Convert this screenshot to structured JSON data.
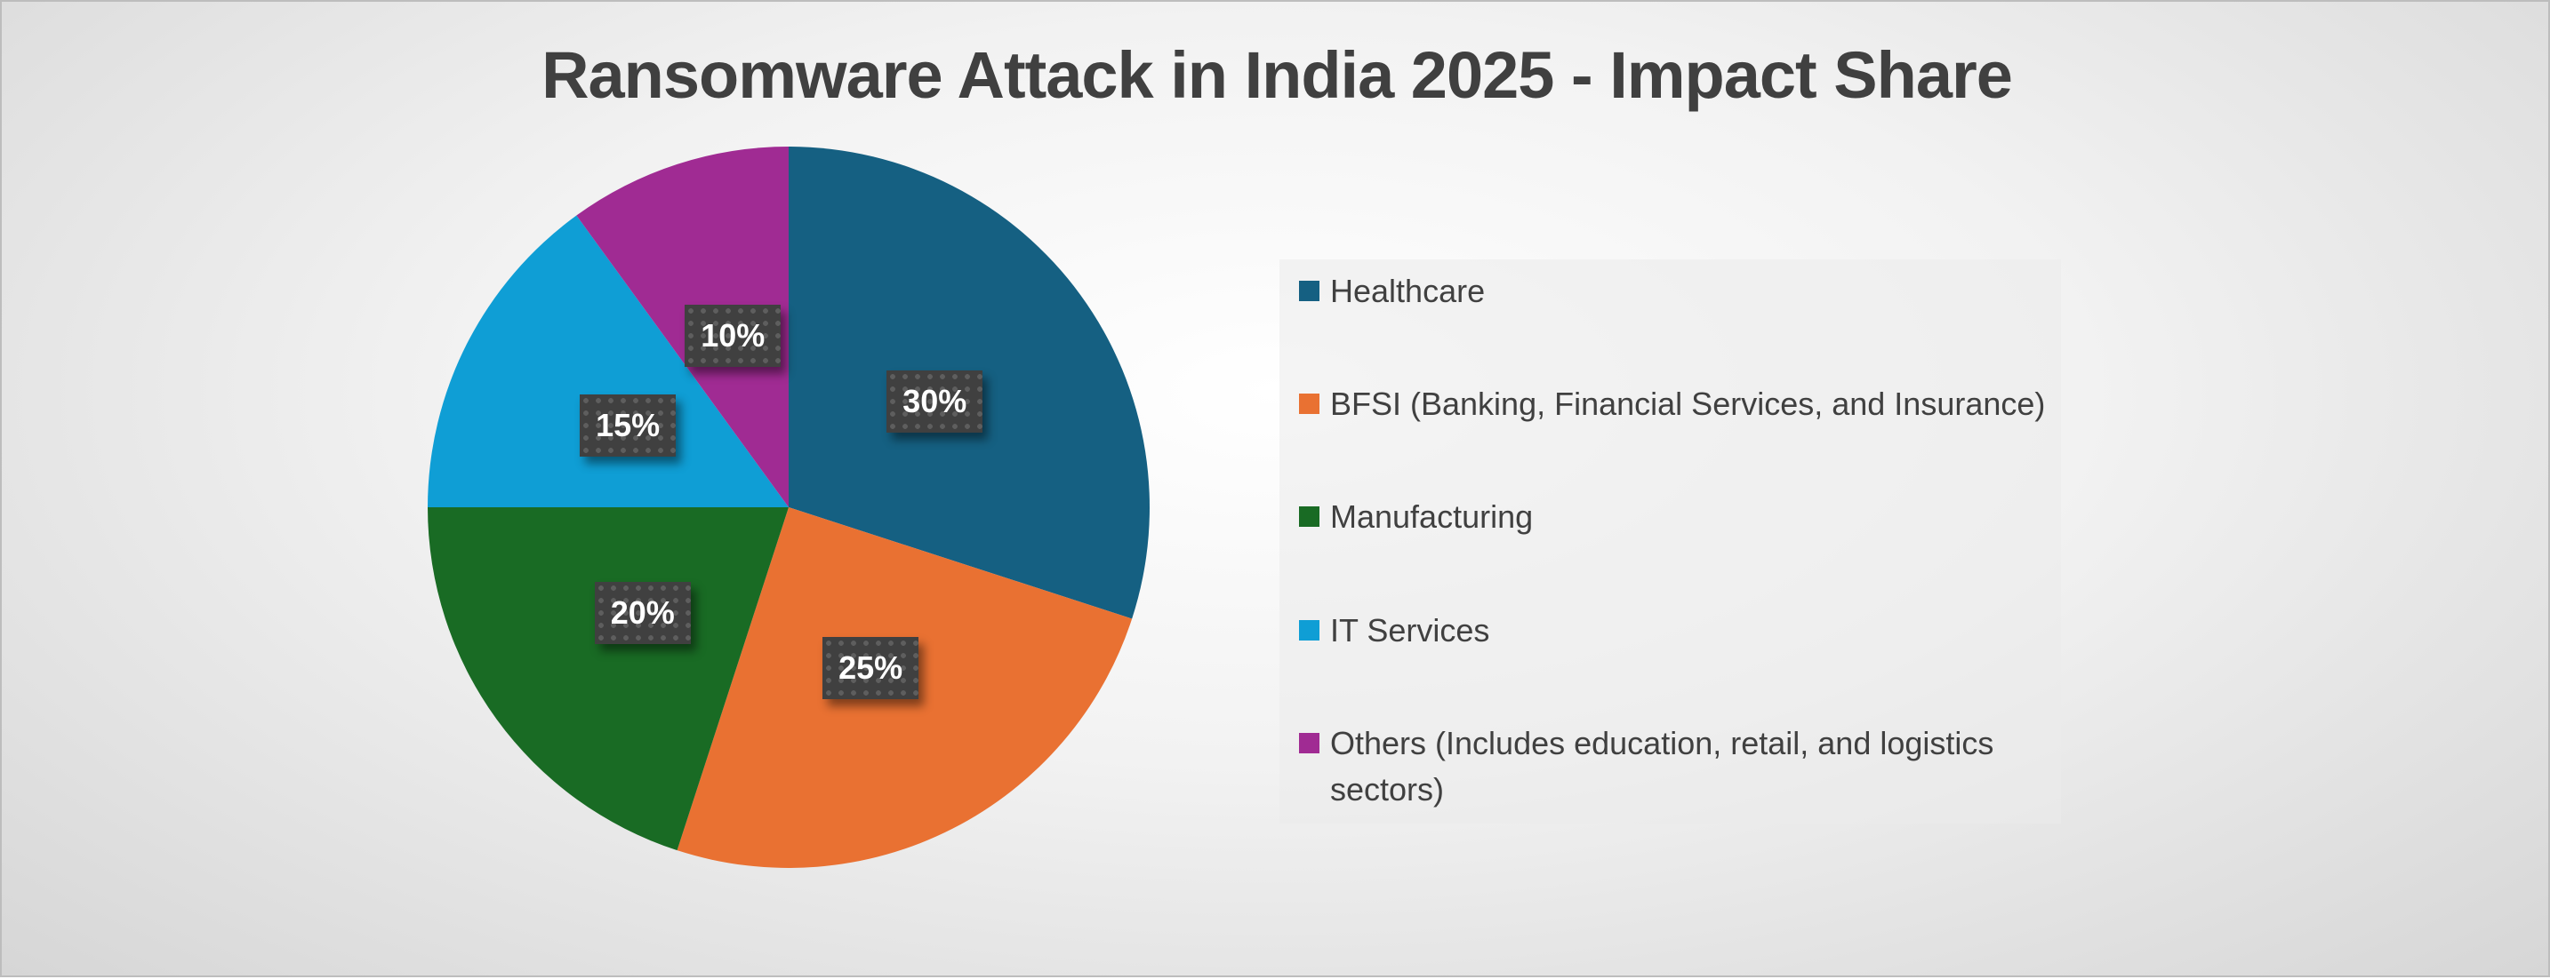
{
  "chart_data": {
    "type": "pie",
    "title": "Ransomware Attack in India 2025 - Impact Share",
    "categories": [
      "Healthcare",
      "BFSI (Banking, Financial Services, and Insurance)",
      "Manufacturing",
      "IT Services",
      "Others (Includes education, retail, and logistics sectors)"
    ],
    "values": [
      30,
      25,
      20,
      15,
      10
    ],
    "data_labels": [
      "30%",
      "25%",
      "20%",
      "15%",
      "10%"
    ],
    "colors": [
      "#156082",
      "#E97132",
      "#196B24",
      "#0F9ED5",
      "#A02B93"
    ],
    "legend_placement": "right",
    "start_angle": "top, clockwise"
  }
}
